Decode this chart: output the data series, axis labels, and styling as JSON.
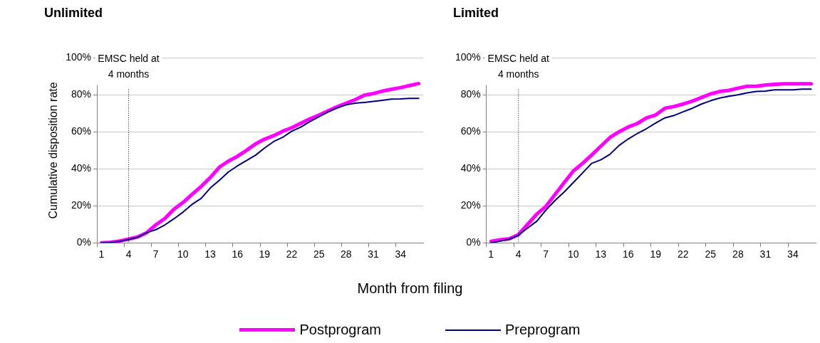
{
  "chart_data": [
    {
      "type": "line",
      "title": "Unlimited",
      "xlabel": "Month from filing",
      "ylabel": "Cumulative disposition rate",
      "legend": "bottom",
      "grid": "y",
      "categories": [
        "1",
        null,
        null,
        "4",
        null,
        null,
        "7",
        null,
        null,
        "10",
        null,
        null,
        "13",
        null,
        null,
        "16",
        null,
        null,
        "19",
        null,
        null,
        "22",
        null,
        null,
        "25",
        null,
        null,
        "28",
        null,
        null,
        "31",
        null,
        null,
        "34",
        null,
        null
      ],
      "ylim": [
        0,
        100
      ],
      "yticks": [
        {
          "value": 0,
          "label": "0%"
        },
        {
          "value": 20,
          "label": "20%"
        },
        {
          "value": 40,
          "label": "40%"
        },
        {
          "value": 60,
          "label": "60%"
        },
        {
          "value": 80,
          "label": "80%"
        },
        {
          "value": 100,
          "label": "100%"
        }
      ],
      "ref_lines": [
        {
          "axis": "x",
          "value": "4",
          "label": "EMSC held at 4 months",
          "color": "#000000",
          "line_style": "dotted"
        }
      ],
      "series": [
        {
          "name": "Postprogram",
          "color": "#ff00ff",
          "values": [
            0,
            0.3,
            1,
            2,
            3.2,
            5.5,
            9.7,
            13.2,
            18.2,
            21.8,
            26.2,
            30.5,
            35.3,
            40.9,
            44.2,
            46.8,
            50,
            53.5,
            56.1,
            58,
            60.4,
            62.3,
            64.7,
            67.1,
            69.1,
            71.4,
            73.6,
            75.6,
            77.5,
            79.9,
            80.8,
            82.1,
            83.1,
            84,
            85.1,
            86.2
          ]
        },
        {
          "name": "Preprogram",
          "color": "#000080",
          "values": [
            0,
            0.2,
            0.8,
            1.8,
            3,
            5.5,
            7.1,
            9.7,
            13,
            16.6,
            20.8,
            24,
            29.6,
            33.8,
            38.3,
            41.6,
            44.5,
            47.4,
            51.3,
            54.8,
            57.1,
            60.4,
            62.6,
            65.6,
            68.2,
            70.8,
            73,
            74.7,
            75.6,
            76,
            76.5,
            77.1,
            77.8,
            77.9,
            78.2,
            78.2
          ]
        }
      ]
    },
    {
      "type": "line",
      "title": "Limited",
      "grid": "y",
      "categories": [
        "1",
        null,
        null,
        "4",
        null,
        null,
        "7",
        null,
        null,
        "10",
        null,
        null,
        "13",
        null,
        null,
        "16",
        null,
        null,
        "19",
        null,
        null,
        "22",
        null,
        null,
        "25",
        null,
        null,
        "28",
        null,
        null,
        "31",
        null,
        null,
        "34",
        null,
        null
      ],
      "ylim": [
        0,
        100
      ],
      "yticks": [
        {
          "value": 0,
          "label": "0%"
        },
        {
          "value": 20,
          "label": "20%"
        },
        {
          "value": 40,
          "label": "40%"
        },
        {
          "value": 60,
          "label": "60%"
        },
        {
          "value": 80,
          "label": "80%"
        },
        {
          "value": 100,
          "label": "100%"
        }
      ],
      "ref_lines": [
        {
          "axis": "x",
          "value": "4",
          "label": "EMSC held at 4 months",
          "color": "#000000",
          "line_style": "dotted"
        }
      ],
      "series": [
        {
          "color": "#ff00ff",
          "values": [
            0.8,
            1.6,
            2.2,
            4.4,
            10,
            15.5,
            19.7,
            26.2,
            32.6,
            38.9,
            43,
            47.5,
            52.3,
            57,
            60.1,
            62.7,
            64.6,
            67.6,
            69.2,
            72.8,
            73.8,
            75.1,
            76.7,
            78.6,
            80.6,
            81.9,
            82.5,
            83.7,
            84.7,
            84.7,
            85.4,
            85.8,
            86.1,
            86.1,
            86.1,
            86.1
          ]
        },
        {
          "color": "#000080",
          "values": [
            0,
            0.9,
            1.9,
            4.1,
            8,
            11.7,
            17.7,
            22.9,
            27.5,
            32.6,
            37.8,
            43,
            44.9,
            47.9,
            52.7,
            56.2,
            59.2,
            61.8,
            64.8,
            67.6,
            68.9,
            70.9,
            72.8,
            75.1,
            76.9,
            78.4,
            79.3,
            80.1,
            81.2,
            81.9,
            82.1,
            82.8,
            82.8,
            82.8,
            83.2,
            83.2
          ]
        }
      ]
    }
  ]
}
